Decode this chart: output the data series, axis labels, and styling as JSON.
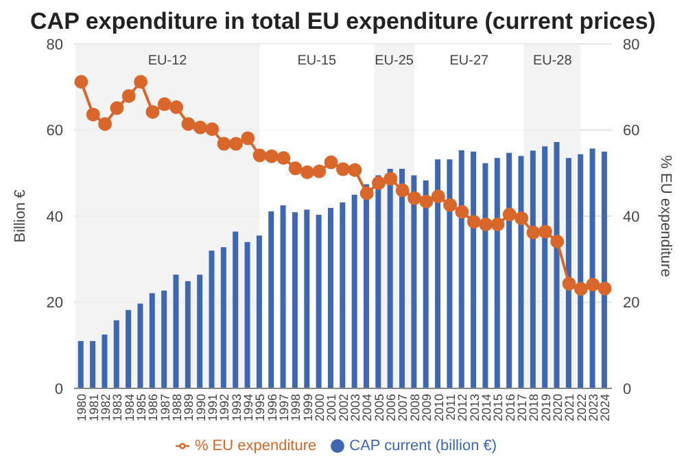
{
  "chart_data": {
    "type": "bar",
    "title": "CAP expenditure in total EU expenditure (current prices)",
    "ylabel": "Billion €",
    "y2label": "% EU expenditure",
    "x": [
      1980,
      1981,
      1982,
      1983,
      1984,
      1985,
      1986,
      1987,
      1988,
      1989,
      1990,
      1991,
      1992,
      1993,
      1994,
      1995,
      1996,
      1997,
      1998,
      1999,
      2000,
      2001,
      2002,
      2003,
      2004,
      2005,
      2006,
      2007,
      2008,
      2009,
      2010,
      2011,
      2012,
      2013,
      2014,
      2015,
      2016,
      2017,
      2018,
      2019,
      2020,
      2021,
      2022,
      2023,
      2024
    ],
    "xlim": [
      1979.4,
      2024.6
    ],
    "xticks": [
      1980,
      1981,
      1982,
      1983,
      1984,
      1985,
      1986,
      1987,
      1988,
      1989,
      1990,
      1991,
      1992,
      1993,
      1994,
      1995,
      1996,
      1997,
      1998,
      1999,
      2000,
      2001,
      2002,
      2003,
      2004,
      2005,
      2006,
      2007,
      2008,
      2009,
      2010,
      2011,
      2012,
      2013,
      2014,
      2015,
      2016,
      2017,
      2018,
      2019,
      2020,
      2021,
      2022,
      2023,
      2024
    ],
    "series": [
      {
        "name": "CAP current (billion €)",
        "color": "#3e67b1",
        "values": [
          11,
          11,
          12.5,
          15.8,
          18.2,
          19.7,
          22.1,
          22.7,
          26.4,
          24.9,
          26.4,
          32,
          32.8,
          36.4,
          34,
          35.5,
          41.1,
          42.5,
          40.9,
          41.5,
          40.3,
          41.9,
          43.2,
          45,
          47.4,
          49.5,
          51,
          51,
          49.5,
          48.3,
          53.2,
          53.2,
          55.3,
          55,
          52.3,
          53.5,
          54.7,
          54,
          55.2,
          56.2,
          57.2,
          53.5,
          54.4,
          55.7,
          55
        ]
      },
      {
        "name": "% EU expenditure",
        "type": "line",
        "axis": "y2",
        "color": "#d9662a",
        "marker": "circle",
        "values": [
          71.2,
          63.6,
          61.4,
          65.1,
          67.9,
          71.2,
          64.2,
          66,
          65.3,
          61.4,
          60.6,
          60.2,
          56.8,
          56.8,
          58.1,
          54.1,
          53.9,
          53.5,
          51.1,
          50.2,
          50.4,
          52.5,
          50.9,
          50.7,
          45.3,
          47.7,
          48.7,
          46,
          44.2,
          43.4,
          44.6,
          42.6,
          41,
          38.7,
          38.1,
          38.1,
          40.4,
          39.5,
          36.2,
          36.4,
          34.1,
          24.3,
          23.1,
          24.1,
          23.2
        ]
      }
    ],
    "ylim": [
      0,
      80
    ],
    "yticks": [
      0,
      20,
      40,
      60,
      80
    ],
    "y2lim": [
      0,
      80
    ],
    "y2ticks": [
      0,
      20,
      40,
      60,
      80
    ],
    "bands": [
      {
        "axis": "x",
        "from": 1979.5,
        "to": 1995,
        "label": "EU-12",
        "color": "#f0f0f0"
      },
      {
        "axis": "x",
        "from": 1995,
        "to": 2004.6,
        "label": "EU-15",
        "color": "#ffffff"
      },
      {
        "axis": "x",
        "from": 2004.6,
        "to": 2008,
        "label": "EU-25",
        "color": "#f0f0f0"
      },
      {
        "axis": "x",
        "from": 2008,
        "to": 2017.2,
        "label": "EU-27",
        "color": "#ffffff"
      },
      {
        "axis": "x",
        "from": 2017.2,
        "to": 2022,
        "label": "EU-28",
        "color": "#f0f0f0"
      }
    ],
    "grid": "y",
    "legend": "bottom"
  }
}
